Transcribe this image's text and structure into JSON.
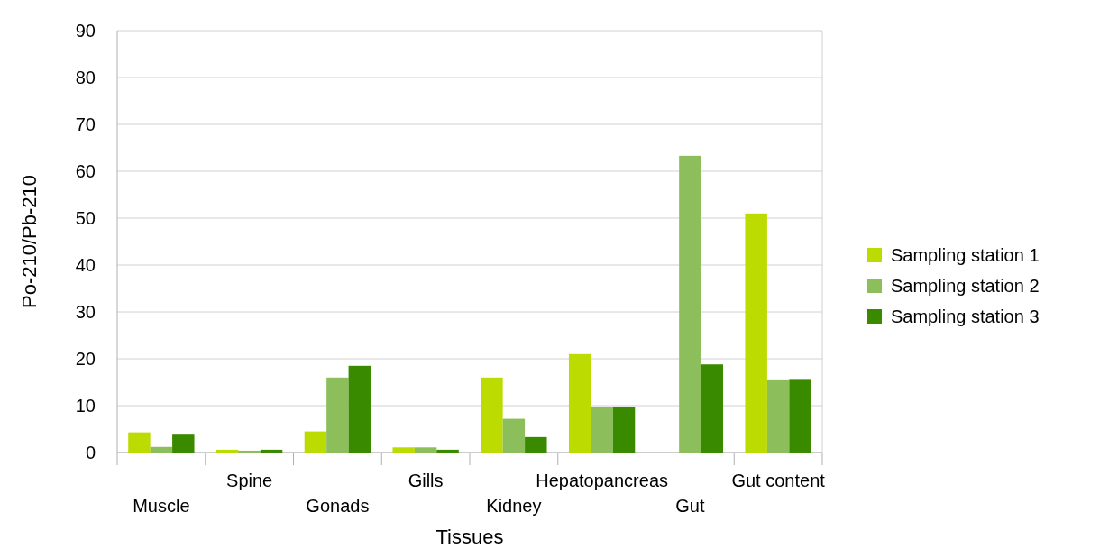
{
  "chart_data": {
    "type": "bar",
    "xlabel": "Tissues",
    "ylabel": "Po-210/Pb-210",
    "categories": [
      "Muscle",
      "Spine",
      "Gonads",
      "Gills",
      "Kidney",
      "Hepatopancreas",
      "Gut",
      "Gut content"
    ],
    "series": [
      {
        "name": "Sampling station 1",
        "color": "#bcdb00",
        "values": [
          4.3,
          0.6,
          4.5,
          1.1,
          16,
          21,
          null,
          51
        ]
      },
      {
        "name": "Sampling station 2",
        "color": "#8cbf5c",
        "values": [
          1.2,
          0.4,
          16,
          1.1,
          7.2,
          9.7,
          63.3,
          15.6
        ]
      },
      {
        "name": "Sampling station 3",
        "color": "#3a8a00",
        "values": [
          4,
          0.6,
          18.5,
          0.6,
          3.3,
          9.7,
          18.8,
          15.7
        ]
      }
    ],
    "ylim": [
      0,
      90
    ],
    "yticks": [
      0,
      10,
      20,
      30,
      40,
      50,
      60,
      70,
      80,
      90
    ],
    "grid": "y",
    "legend": "right"
  }
}
